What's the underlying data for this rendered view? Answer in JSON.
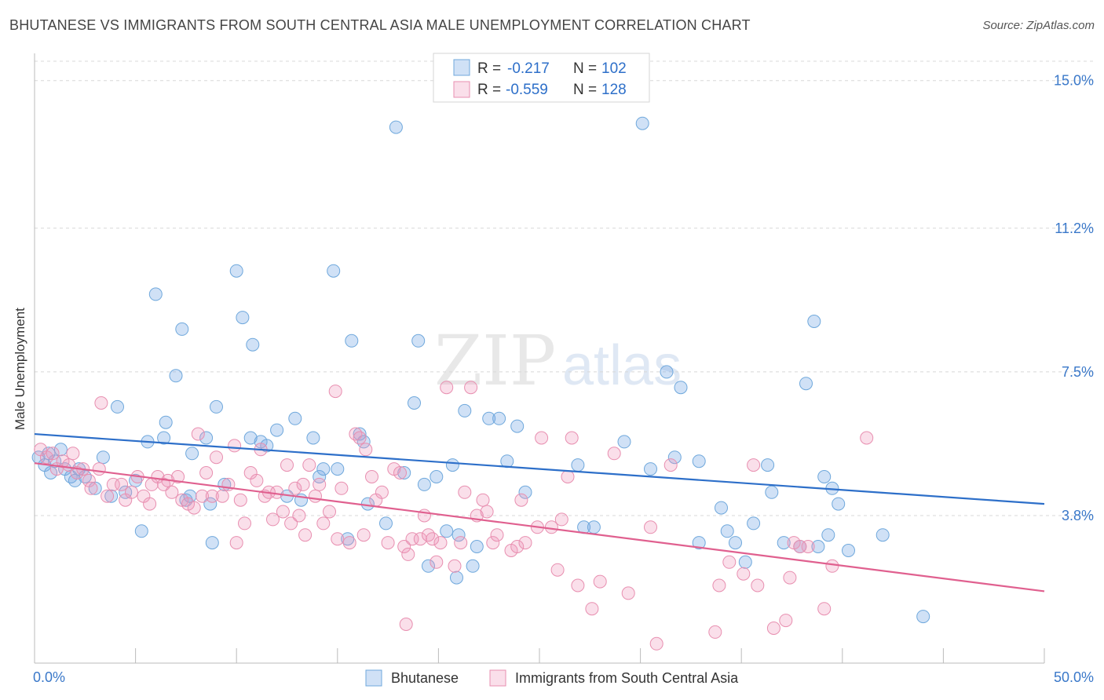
{
  "title": "BHUTANESE VS IMMIGRANTS FROM SOUTH CENTRAL ASIA MALE UNEMPLOYMENT CORRELATION CHART",
  "source": "Source: ZipAtlas.com",
  "watermark": {
    "zip": "ZIP",
    "atlas": "atlas"
  },
  "colors": {
    "blue": "#6fa8dc",
    "blue_fill": "rgba(120,170,230,0.35)",
    "blue_line": "#2d6fc9",
    "pink": "#e88fb0",
    "pink_fill": "rgba(240,150,185,0.30)",
    "pink_line": "#e0608f",
    "axis_label": "#3a78c9",
    "grid": "#d8d8d8"
  },
  "legend": {
    "rows": [
      {
        "r_label": "R =",
        "r_value": "-0.217",
        "n_label": "N =",
        "n_value": "102"
      },
      {
        "r_label": "R =",
        "r_value": "-0.559",
        "n_label": "N =",
        "n_value": "128"
      }
    ]
  },
  "bottom_legend": [
    "Bhutanese",
    "Immigrants from South Central Asia"
  ],
  "chart_data": {
    "type": "scatter",
    "xlabel": "",
    "ylabel": "Male Unemployment",
    "xlim": [
      0,
      50
    ],
    "ylim": [
      0,
      15.5
    ],
    "x_tick_labels": [
      "0.0%",
      "50.0%"
    ],
    "y_ticks": [
      3.8,
      7.5,
      11.2,
      15.0
    ],
    "y_tick_labels": [
      "3.8%",
      "7.5%",
      "11.2%",
      "15.0%"
    ],
    "grid": true,
    "series": [
      {
        "name": "Bhutanese",
        "trend": {
          "x": [
            0,
            50
          ],
          "y": [
            5.9,
            4.1
          ]
        },
        "points": [
          [
            0.2,
            5.3
          ],
          [
            0.5,
            5.1
          ],
          [
            0.7,
            5.4
          ],
          [
            0.8,
            4.9
          ],
          [
            1.0,
            5.2
          ],
          [
            1.3,
            5.5
          ],
          [
            1.5,
            5.0
          ],
          [
            1.8,
            4.8
          ],
          [
            2.0,
            4.7
          ],
          [
            2.2,
            5.0
          ],
          [
            2.5,
            4.8
          ],
          [
            3.0,
            4.5
          ],
          [
            3.4,
            5.3
          ],
          [
            3.8,
            4.3
          ],
          [
            4.1,
            6.6
          ],
          [
            4.5,
            4.4
          ],
          [
            5.0,
            4.7
          ],
          [
            5.3,
            3.4
          ],
          [
            5.6,
            5.7
          ],
          [
            6.0,
            9.5
          ],
          [
            6.4,
            5.8
          ],
          [
            6.5,
            6.2
          ],
          [
            7.0,
            7.4
          ],
          [
            7.5,
            4.2
          ],
          [
            7.3,
            8.6
          ],
          [
            7.8,
            5.4
          ],
          [
            7.7,
            4.3
          ],
          [
            8.5,
            5.8
          ],
          [
            8.7,
            4.1
          ],
          [
            8.8,
            3.1
          ],
          [
            9.0,
            6.6
          ],
          [
            9.4,
            4.6
          ],
          [
            10.0,
            10.1
          ],
          [
            10.3,
            8.9
          ],
          [
            10.7,
            5.8
          ],
          [
            10.8,
            8.2
          ],
          [
            11.2,
            5.7
          ],
          [
            11.5,
            5.6
          ],
          [
            12.0,
            6.0
          ],
          [
            12.5,
            4.3
          ],
          [
            12.9,
            6.3
          ],
          [
            13.2,
            4.2
          ],
          [
            13.8,
            5.8
          ],
          [
            14.1,
            4.8
          ],
          [
            14.3,
            5.0
          ],
          [
            14.8,
            10.1
          ],
          [
            15.0,
            5.0
          ],
          [
            15.5,
            3.2
          ],
          [
            15.7,
            8.3
          ],
          [
            16.1,
            5.9
          ],
          [
            16.3,
            5.7
          ],
          [
            16.5,
            4.1
          ],
          [
            17.4,
            3.6
          ],
          [
            17.9,
            13.8
          ],
          [
            18.3,
            4.9
          ],
          [
            18.8,
            6.7
          ],
          [
            19.0,
            8.3
          ],
          [
            19.3,
            4.6
          ],
          [
            19.5,
            2.5
          ],
          [
            19.9,
            4.8
          ],
          [
            20.4,
            3.4
          ],
          [
            20.7,
            5.1
          ],
          [
            20.9,
            2.2
          ],
          [
            21.0,
            3.3
          ],
          [
            21.3,
            6.5
          ],
          [
            21.7,
            2.5
          ],
          [
            21.9,
            3.0
          ],
          [
            22.5,
            6.3
          ],
          [
            23.0,
            6.3
          ],
          [
            23.4,
            5.2
          ],
          [
            23.9,
            6.1
          ],
          [
            24.3,
            4.4
          ],
          [
            26.9,
            5.1
          ],
          [
            27.2,
            3.5
          ],
          [
            27.7,
            3.5
          ],
          [
            29.2,
            5.7
          ],
          [
            30.1,
            13.9
          ],
          [
            30.5,
            5.0
          ],
          [
            31.3,
            7.5
          ],
          [
            31.7,
            5.3
          ],
          [
            32.0,
            7.1
          ],
          [
            32.9,
            5.2
          ],
          [
            32.9,
            3.1
          ],
          [
            34.0,
            4.0
          ],
          [
            34.3,
            3.4
          ],
          [
            34.7,
            3.1
          ],
          [
            35.2,
            2.6
          ],
          [
            35.6,
            3.6
          ],
          [
            36.3,
            5.1
          ],
          [
            36.5,
            4.4
          ],
          [
            37.1,
            3.1
          ],
          [
            37.9,
            3.0
          ],
          [
            38.6,
            8.8
          ],
          [
            38.2,
            7.2
          ],
          [
            38.8,
            3.0
          ],
          [
            39.3,
            3.3
          ],
          [
            39.1,
            4.8
          ],
          [
            39.5,
            4.5
          ],
          [
            39.8,
            4.1
          ],
          [
            40.3,
            2.9
          ],
          [
            42.0,
            3.3
          ],
          [
            44.0,
            1.2
          ]
        ]
      },
      {
        "name": "Immigrants from South Central Asia",
        "trend": {
          "x": [
            0,
            50
          ],
          "y": [
            5.15,
            1.85
          ]
        },
        "points": [
          [
            0.3,
            5.5
          ],
          [
            0.6,
            5.3
          ],
          [
            0.9,
            5.4
          ],
          [
            1.1,
            5.0
          ],
          [
            1.4,
            5.2
          ],
          [
            1.7,
            5.1
          ],
          [
            1.9,
            5.4
          ],
          [
            2.1,
            4.9
          ],
          [
            2.4,
            5.0
          ],
          [
            2.7,
            4.7
          ],
          [
            2.8,
            4.5
          ],
          [
            3.2,
            5.0
          ],
          [
            3.3,
            6.7
          ],
          [
            3.6,
            4.3
          ],
          [
            3.9,
            4.6
          ],
          [
            4.3,
            4.6
          ],
          [
            4.5,
            4.2
          ],
          [
            4.8,
            4.4
          ],
          [
            5.1,
            4.8
          ],
          [
            5.4,
            4.3
          ],
          [
            5.7,
            4.1
          ],
          [
            5.8,
            4.6
          ],
          [
            6.1,
            4.8
          ],
          [
            6.4,
            4.6
          ],
          [
            6.6,
            4.7
          ],
          [
            6.8,
            4.4
          ],
          [
            7.1,
            4.8
          ],
          [
            7.3,
            4.2
          ],
          [
            7.6,
            4.1
          ],
          [
            7.9,
            4.0
          ],
          [
            8.1,
            5.9
          ],
          [
            8.3,
            4.3
          ],
          [
            8.5,
            4.9
          ],
          [
            8.8,
            4.3
          ],
          [
            9.0,
            5.3
          ],
          [
            9.3,
            4.3
          ],
          [
            9.6,
            4.6
          ],
          [
            9.9,
            5.6
          ],
          [
            10.0,
            3.1
          ],
          [
            10.2,
            4.2
          ],
          [
            10.4,
            3.6
          ],
          [
            10.7,
            4.9
          ],
          [
            11.0,
            4.7
          ],
          [
            11.2,
            5.5
          ],
          [
            11.4,
            4.3
          ],
          [
            11.6,
            4.4
          ],
          [
            11.8,
            3.7
          ],
          [
            12.0,
            4.4
          ],
          [
            12.3,
            3.9
          ],
          [
            12.5,
            5.1
          ],
          [
            12.7,
            3.6
          ],
          [
            12.9,
            4.5
          ],
          [
            13.1,
            3.8
          ],
          [
            13.3,
            4.6
          ],
          [
            13.4,
            3.3
          ],
          [
            13.6,
            5.1
          ],
          [
            13.9,
            4.3
          ],
          [
            14.1,
            4.6
          ],
          [
            14.3,
            3.6
          ],
          [
            14.6,
            3.9
          ],
          [
            14.9,
            7.0
          ],
          [
            15.0,
            3.2
          ],
          [
            15.2,
            4.5
          ],
          [
            15.6,
            3.1
          ],
          [
            15.9,
            5.9
          ],
          [
            16.1,
            5.8
          ],
          [
            16.3,
            3.3
          ],
          [
            16.4,
            5.5
          ],
          [
            16.7,
            4.8
          ],
          [
            16.9,
            4.2
          ],
          [
            17.2,
            4.4
          ],
          [
            17.5,
            3.1
          ],
          [
            17.8,
            5.0
          ],
          [
            18.1,
            4.9
          ],
          [
            18.3,
            3.0
          ],
          [
            18.4,
            1.0
          ],
          [
            18.5,
            2.8
          ],
          [
            18.7,
            3.2
          ],
          [
            19.1,
            3.2
          ],
          [
            19.3,
            3.8
          ],
          [
            19.5,
            3.3
          ],
          [
            19.7,
            3.2
          ],
          [
            19.9,
            2.6
          ],
          [
            20.1,
            3.1
          ],
          [
            20.4,
            7.1
          ],
          [
            20.8,
            2.5
          ],
          [
            21.1,
            3.1
          ],
          [
            21.3,
            4.4
          ],
          [
            21.6,
            7.1
          ],
          [
            21.9,
            3.8
          ],
          [
            22.2,
            4.2
          ],
          [
            22.4,
            3.9
          ],
          [
            22.7,
            3.1
          ],
          [
            22.9,
            3.3
          ],
          [
            23.6,
            2.9
          ],
          [
            23.9,
            3.0
          ],
          [
            24.1,
            4.2
          ],
          [
            24.3,
            3.1
          ],
          [
            24.9,
            3.5
          ],
          [
            25.1,
            5.8
          ],
          [
            25.6,
            3.5
          ],
          [
            25.9,
            2.4
          ],
          [
            26.1,
            3.7
          ],
          [
            26.4,
            4.8
          ],
          [
            26.6,
            5.8
          ],
          [
            26.9,
            2.0
          ],
          [
            27.6,
            1.4
          ],
          [
            28.0,
            2.1
          ],
          [
            28.7,
            5.4
          ],
          [
            29.4,
            1.8
          ],
          [
            30.5,
            3.5
          ],
          [
            30.8,
            0.5
          ],
          [
            31.5,
            5.1
          ],
          [
            33.7,
            0.8
          ],
          [
            33.9,
            2.0
          ],
          [
            35.1,
            2.3
          ],
          [
            35.6,
            5.1
          ],
          [
            35.8,
            2.0
          ],
          [
            36.6,
            0.9
          ],
          [
            37.2,
            1.1
          ],
          [
            37.4,
            2.2
          ],
          [
            37.6,
            3.1
          ],
          [
            38.3,
            3.0
          ],
          [
            39.1,
            1.4
          ],
          [
            39.5,
            2.5
          ],
          [
            41.2,
            5.8
          ],
          [
            37.9,
            3.0
          ],
          [
            34.4,
            2.6
          ]
        ]
      }
    ]
  }
}
